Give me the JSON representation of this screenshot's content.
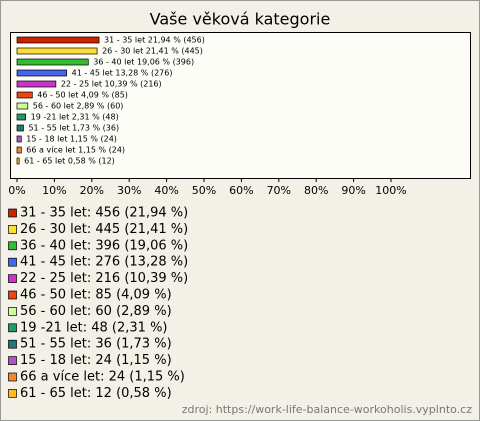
{
  "chart_data": {
    "type": "bar",
    "orientation": "horizontal",
    "title": "Vaše věková kategorie",
    "values": [
      21.94,
      21.41,
      19.06,
      13.28,
      10.39,
      4.09,
      2.89,
      2.31,
      1.73,
      1.15,
      1.15,
      0.58
    ],
    "value_labels": [
      "31 - 35 let 21,94 % (456)",
      "26 - 30 let 21,41 % (445)",
      "36 - 40 let 19,06 % (396)",
      "41 - 45 let 13,28 % (276)",
      "22 - 25 let 10,39 % (216)",
      "46 - 50 let 4,09 % (85)",
      "56 - 60 let 2,89 % (60)",
      "19 -21 let 2,31 % (48)",
      "51 - 55 let 1,73 % (36)",
      "15 - 18 let 1,15 % (24)",
      "66 a více let 1,15 % (24)",
      "61 - 65 let 0,58 % (12)"
    ],
    "legend_labels": [
      "31 - 35 let: 456 (21,94 %)",
      "26 - 30 let: 445 (21,41 %)",
      "36 - 40 let: 396 (19,06 %)",
      "41 - 45 let: 276 (13,28 %)",
      "22 - 25 let: 216 (10,39 %)",
      "46 - 50 let: 85 (4,09 %)",
      "56 - 60 let: 60 (2,89 %)",
      "19 -21 let: 48 (2,31 %)",
      "51 - 55 let: 36 (1,73 %)",
      "15 - 18 let: 24 (1,15 %)",
      "66 a více let: 24 (1,15 %)",
      "61 - 65 let: 12 (0,58 %)"
    ],
    "colors": [
      "#cc2200",
      "#ffdd33",
      "#33bb33",
      "#4466ee",
      "#cc33cc",
      "#ee4411",
      "#ccff99",
      "#229966",
      "#227777",
      "#aa55cc",
      "#ee8833",
      "#ffbb22"
    ],
    "xlim": [
      0,
      100
    ],
    "xticks": [
      {
        "value": 0,
        "label": "0%"
      },
      {
        "value": 10,
        "label": "10%"
      },
      {
        "value": 20,
        "label": "20%"
      },
      {
        "value": 30,
        "label": "30%"
      },
      {
        "value": 40,
        "label": "40%"
      },
      {
        "value": 50,
        "label": "50%"
      },
      {
        "value": 60,
        "label": "60%"
      },
      {
        "value": 70,
        "label": "70%"
      },
      {
        "value": 80,
        "label": "80%"
      },
      {
        "value": 90,
        "label": "90%"
      },
      {
        "value": 100,
        "label": "100%"
      }
    ],
    "source": "zdroj: https://work-life-balance-workoholis.vyplnto.cz"
  }
}
